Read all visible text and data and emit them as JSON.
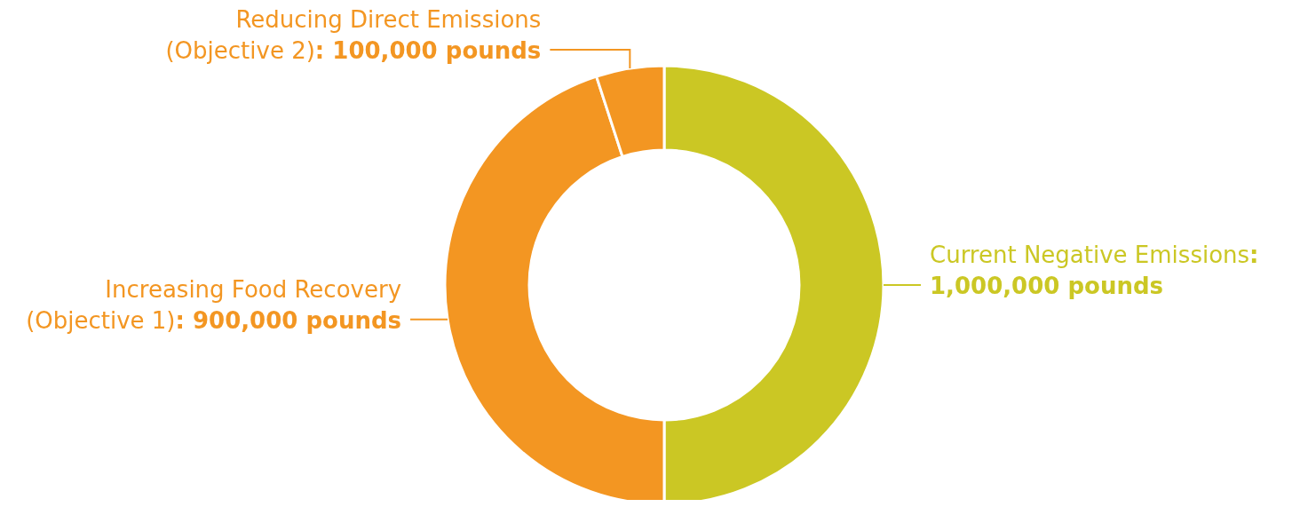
{
  "chart_data": {
    "type": "donut",
    "categories": [
      "Current Negative Emissions",
      "Increasing Food Recovery (Objective 1)",
      "Reducing Direct Emissions (Objective 2)"
    ],
    "values": [
      1000000,
      900000,
      100000
    ],
    "value_labels": [
      ": 1,000,000 pounds",
      ": 900,000 pounds",
      ": 100,000 pounds"
    ],
    "colors": [
      "#cbc724",
      "#f39622",
      "#f39622"
    ]
  }
}
